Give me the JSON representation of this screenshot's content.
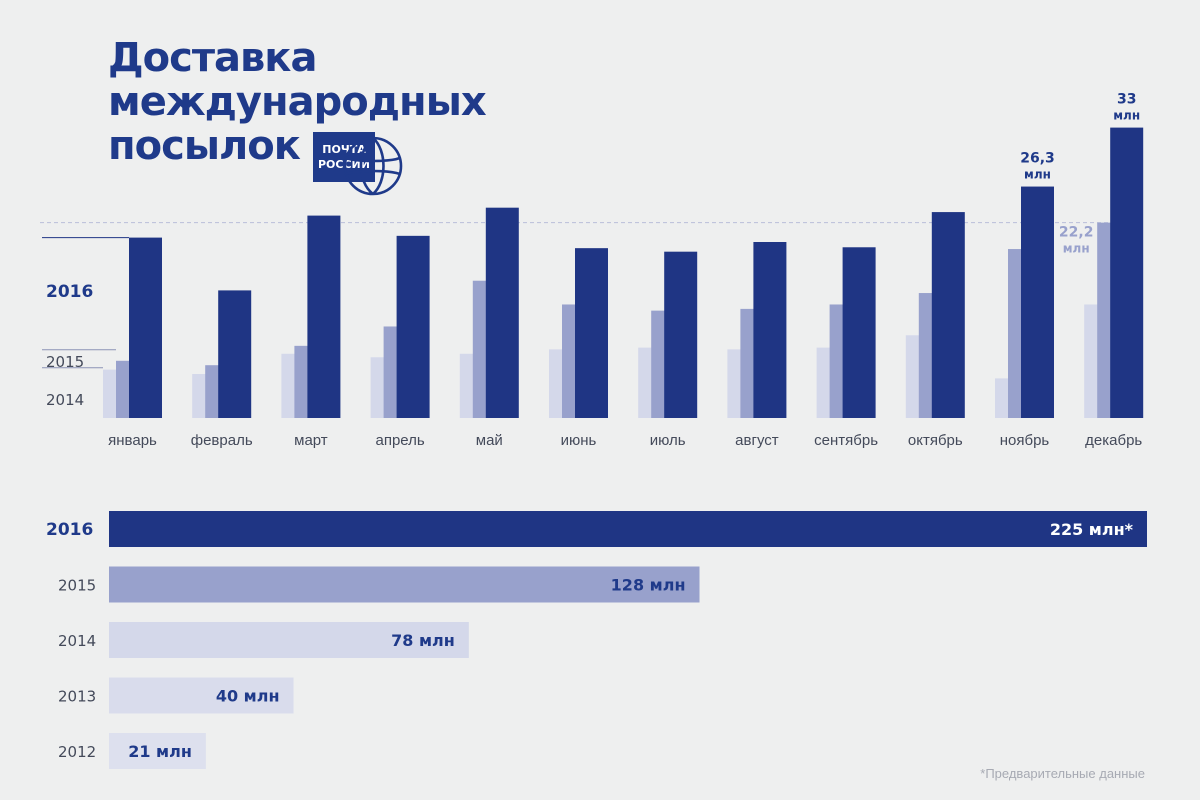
{
  "title": {
    "line1": "Доставка",
    "line2": "международных",
    "line3": "посылок"
  },
  "logo": {
    "line1": "ПОЧТА",
    "line2": "РОССИИ",
    "color": "#1f3a8a"
  },
  "footnote": "*Предварительные данные",
  "colors": {
    "y2016": "#1f3584",
    "y2015": "#98a1cc",
    "y2014": "#d4d8ea",
    "y2013": "#d9dcec",
    "y2012": "#dde0ee",
    "text_dark": "#1f3a8a",
    "text_mid": "#444a5a"
  },
  "chart_data": [
    {
      "type": "bar",
      "categories": [
        "январь",
        "февраль",
        "март",
        "апрель",
        "май",
        "июнь",
        "июль",
        "август",
        "сентябрь",
        "октябрь",
        "ноябрь",
        "декабрь"
      ],
      "series": [
        {
          "name": "2014",
          "values": [
            5.5,
            5.0,
            7.3,
            6.9,
            7.3,
            7.8,
            8.0,
            7.8,
            8.0,
            9.4,
            4.5,
            12.9
          ]
        },
        {
          "name": "2015",
          "values": [
            6.5,
            6.0,
            8.2,
            10.4,
            15.6,
            12.9,
            12.2,
            12.4,
            12.9,
            14.2,
            19.2,
            22.2
          ]
        },
        {
          "name": "2016",
          "values": [
            20.5,
            14.5,
            23.0,
            20.7,
            23.9,
            19.3,
            18.9,
            20.0,
            19.4,
            23.4,
            26.3,
            33.0
          ]
        }
      ],
      "data_labels": [
        {
          "category": "ноябрь",
          "series": "2016",
          "value": "26,3",
          "unit": "млн"
        },
        {
          "category": "декабрь",
          "series": "2016",
          "value": "33",
          "unit": "млн"
        },
        {
          "category": "декабрь",
          "series": "2015",
          "value": "22,2",
          "unit": "млн"
        }
      ],
      "legend": [
        "2016",
        "2015",
        "2014"
      ],
      "legend_placement": "left",
      "reference_line": 22.2,
      "ylim": [
        0,
        34
      ],
      "grid": false,
      "xlabel": "",
      "ylabel": ""
    },
    {
      "type": "bar",
      "orientation": "horizontal",
      "categories": [
        "2016",
        "2015",
        "2014",
        "2013",
        "2012"
      ],
      "values": [
        225,
        128,
        78,
        40,
        21
      ],
      "labels": [
        "225 млн*",
        "128 млн",
        "78 млн",
        "40 млн",
        "21 млн"
      ],
      "xlim": [
        0,
        225
      ],
      "grid": false
    }
  ]
}
